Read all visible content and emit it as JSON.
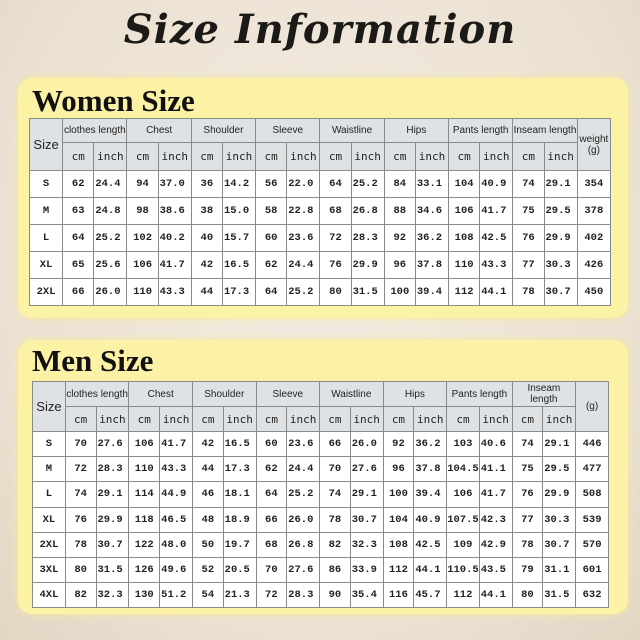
{
  "title": "Size Information",
  "women": {
    "heading": "Women Size",
    "size_label": "Size",
    "groups": [
      "clothes length",
      "Chest",
      "Shoulder",
      "Sleeve",
      "Waistline",
      "Hips",
      "Pants length",
      "Inseam length"
    ],
    "unit_cm": "cm",
    "unit_inch": "inch",
    "weight_label": "weight",
    "weight_unit": "(g)",
    "rows": [
      [
        "S",
        "62",
        "24.4",
        "94",
        "37.0",
        "36",
        "14.2",
        "56",
        "22.0",
        "64",
        "25.2",
        "84",
        "33.1",
        "104",
        "40.9",
        "74",
        "29.1",
        "354"
      ],
      [
        "M",
        "63",
        "24.8",
        "98",
        "38.6",
        "38",
        "15.0",
        "58",
        "22.8",
        "68",
        "26.8",
        "88",
        "34.6",
        "106",
        "41.7",
        "75",
        "29.5",
        "378"
      ],
      [
        "L",
        "64",
        "25.2",
        "102",
        "40.2",
        "40",
        "15.7",
        "60",
        "23.6",
        "72",
        "28.3",
        "92",
        "36.2",
        "108",
        "42.5",
        "76",
        "29.9",
        "402"
      ],
      [
        "XL",
        "65",
        "25.6",
        "106",
        "41.7",
        "42",
        "16.5",
        "62",
        "24.4",
        "76",
        "29.9",
        "96",
        "37.8",
        "110",
        "43.3",
        "77",
        "30.3",
        "426"
      ],
      [
        "2XL",
        "66",
        "26.0",
        "110",
        "43.3",
        "44",
        "17.3",
        "64",
        "25.2",
        "80",
        "31.5",
        "100",
        "39.4",
        "112",
        "44.1",
        "78",
        "30.7",
        "450"
      ]
    ]
  },
  "men": {
    "heading": "Men Size",
    "size_label": "Size",
    "groups": [
      "clothes length",
      "Chest",
      "Shoulder",
      "Sleeve",
      "Waistline",
      "Hips",
      "Pants length",
      "Inseam length"
    ],
    "unit_cm": "cm",
    "unit_inch": "inch",
    "weight_label": "",
    "weight_unit": "(g)",
    "rows": [
      [
        "S",
        "70",
        "27.6",
        "106",
        "41.7",
        "42",
        "16.5",
        "60",
        "23.6",
        "66",
        "26.0",
        "92",
        "36.2",
        "103",
        "40.6",
        "74",
        "29.1",
        "446"
      ],
      [
        "M",
        "72",
        "28.3",
        "110",
        "43.3",
        "44",
        "17.3",
        "62",
        "24.4",
        "70",
        "27.6",
        "96",
        "37.8",
        "104.5",
        "41.1",
        "75",
        "29.5",
        "477"
      ],
      [
        "L",
        "74",
        "29.1",
        "114",
        "44.9",
        "46",
        "18.1",
        "64",
        "25.2",
        "74",
        "29.1",
        "100",
        "39.4",
        "106",
        "41.7",
        "76",
        "29.9",
        "508"
      ],
      [
        "XL",
        "76",
        "29.9",
        "118",
        "46.5",
        "48",
        "18.9",
        "66",
        "26.0",
        "78",
        "30.7",
        "104",
        "40.9",
        "107.5",
        "42.3",
        "77",
        "30.3",
        "539"
      ],
      [
        "2XL",
        "78",
        "30.7",
        "122",
        "48.0",
        "50",
        "19.7",
        "68",
        "26.8",
        "82",
        "32.3",
        "108",
        "42.5",
        "109",
        "42.9",
        "78",
        "30.7",
        "570"
      ],
      [
        "3XL",
        "80",
        "31.5",
        "126",
        "49.6",
        "52",
        "20.5",
        "70",
        "27.6",
        "86",
        "33.9",
        "112",
        "44.1",
        "110.5",
        "43.5",
        "79",
        "31.1",
        "601"
      ],
      [
        "4XL",
        "82",
        "32.3",
        "130",
        "51.2",
        "54",
        "21.3",
        "72",
        "28.3",
        "90",
        "35.4",
        "116",
        "45.7",
        "112",
        "44.1",
        "80",
        "31.5",
        "632"
      ]
    ]
  }
}
